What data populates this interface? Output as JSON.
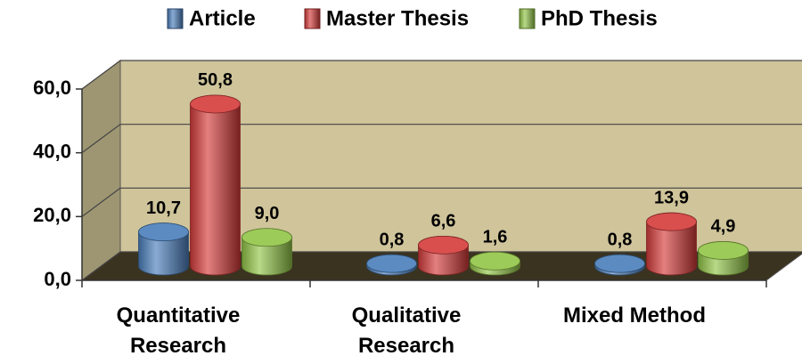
{
  "chart_data": {
    "type": "bar3d",
    "categories": [
      "Quantitative Research",
      "Qualitative Research",
      "Mixed Method"
    ],
    "series": [
      {
        "name": "Article",
        "color": "#4a7ebb",
        "values": [
          10.7,
          0.8,
          0.8
        ],
        "value_labels": [
          "10,7",
          "0,8",
          "0,8"
        ]
      },
      {
        "name": "Master Thesis",
        "color": "#d43b3a",
        "values": [
          50.8,
          6.6,
          13.9
        ],
        "value_labels": [
          "50,8",
          "6,6",
          "13,9"
        ]
      },
      {
        "name": "PhD Thesis",
        "color": "#92c547",
        "values": [
          9.0,
          1.6,
          4.9
        ],
        "value_labels": [
          "9,0",
          "1,6",
          "4,9"
        ]
      }
    ],
    "ylim": [
      0,
      60
    ],
    "yticks": [
      {
        "value": 0,
        "label": "0,0"
      },
      {
        "value": 20,
        "label": "20,0"
      },
      {
        "value": 40,
        "label": "40,0"
      },
      {
        "value": 60,
        "label": "60,0"
      }
    ],
    "grid": true,
    "legend": "top"
  }
}
